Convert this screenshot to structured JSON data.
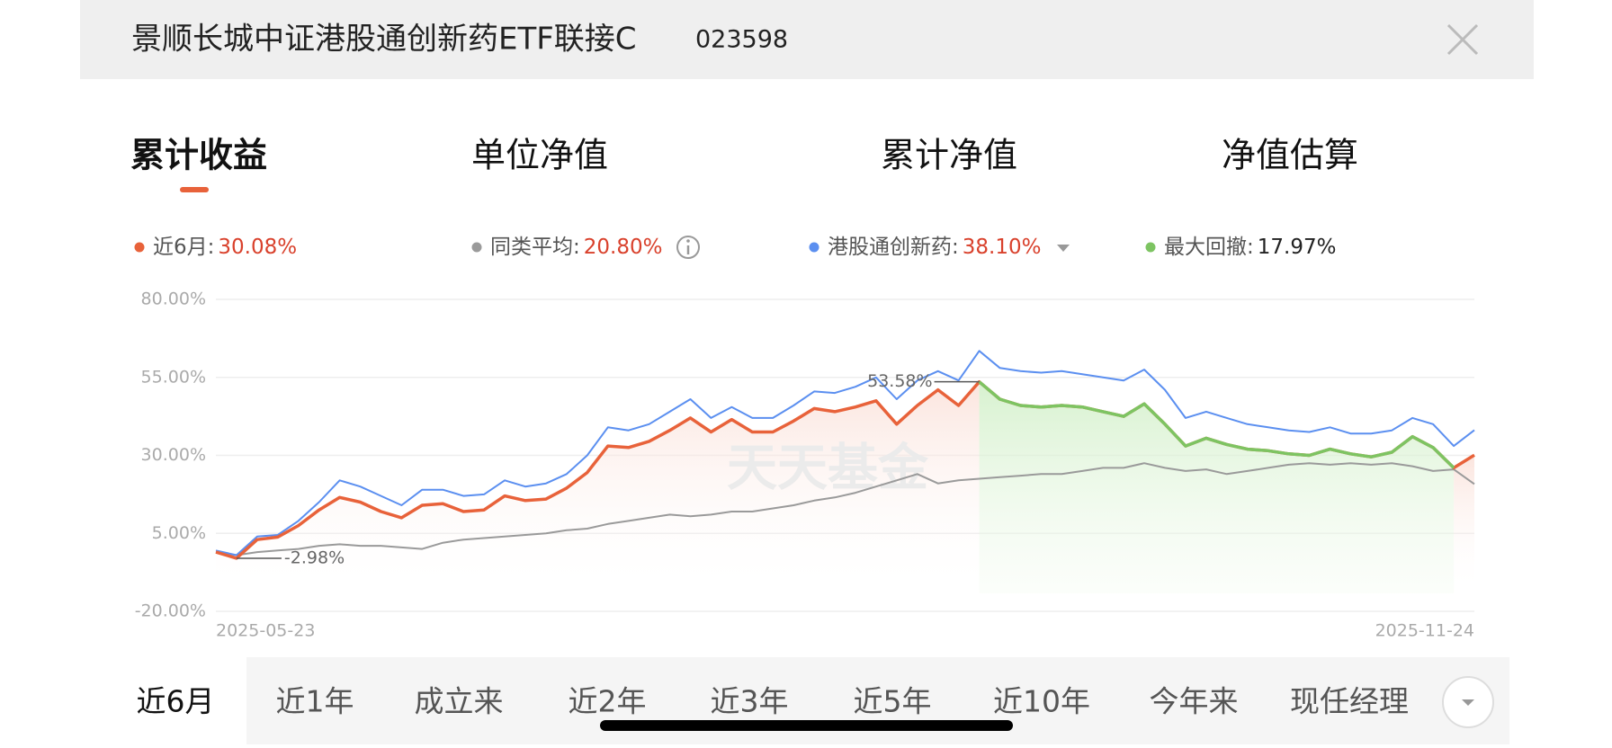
{
  "header": {
    "title": "景顺长城中证港股通创新药ETF联接C",
    "code": "023598"
  },
  "tabs": {
    "items": [
      "累计收益",
      "单位净值",
      "累计净值",
      "净值估算"
    ],
    "active": 0
  },
  "chart_data": {
    "type": "line",
    "watermark": "天天基金",
    "categories": [
      "2025-05-23",
      null,
      null,
      null,
      null,
      null,
      null,
      null,
      null,
      null,
      null,
      null,
      null,
      null,
      null,
      null,
      null,
      null,
      null,
      null,
      null,
      null,
      null,
      null,
      null,
      null,
      null,
      null,
      null,
      null,
      null,
      null,
      null,
      null,
      null,
      null,
      null,
      null,
      null,
      null,
      null,
      null,
      null,
      null,
      null,
      null,
      null,
      null,
      null,
      null,
      null,
      null,
      null,
      null,
      null,
      null,
      null,
      null,
      null,
      null,
      null,
      "2025-11-24"
    ],
    "series": [
      {
        "name": "近6月:",
        "value_label": "30.08%",
        "color": "#e8623a",
        "values": [
          -1,
          -2.98,
          3,
          3.8,
          7.5,
          12.5,
          16.5,
          15,
          12,
          10,
          14,
          14.5,
          12,
          12.5,
          17,
          15.5,
          16,
          19.5,
          24.5,
          33,
          32.5,
          34.5,
          38,
          42,
          37.5,
          41.5,
          37.5,
          37.5,
          41,
          45,
          44,
          45.5,
          47.5,
          40,
          46,
          51,
          46,
          53.58,
          48,
          46,
          45.5,
          46,
          45.5,
          44,
          42.5,
          46.5,
          40,
          33,
          35.5,
          33.5,
          32,
          31.5,
          30.5,
          30,
          32,
          30.5,
          29.5,
          31,
          36,
          32.5,
          25.98,
          30.08
        ]
      },
      {
        "name": "同类平均:",
        "value_label": "20.80%",
        "color": "#9a9a9a",
        "values": [
          -1,
          -2,
          -1,
          -0.5,
          0,
          1,
          1.5,
          1,
          1,
          0.5,
          0,
          2,
          3,
          3.5,
          4,
          4.5,
          5,
          6,
          6.5,
          8,
          9,
          10,
          11,
          10.5,
          11,
          12,
          12,
          13,
          14,
          15.5,
          16.5,
          18,
          20,
          22,
          24,
          21,
          22,
          22.5,
          23,
          23.5,
          24,
          24,
          25,
          26,
          26,
          27.5,
          26,
          25,
          25.5,
          24,
          25,
          26,
          27,
          27.5,
          27,
          27.5,
          27,
          27.5,
          26.5,
          25,
          25.5,
          20.8
        ]
      },
      {
        "name": "港股通创新药:",
        "value_label": "38.10%",
        "color": "#5b8ff0",
        "values": [
          -0.5,
          -2,
          4,
          4.5,
          9,
          15,
          22,
          20,
          17,
          14,
          19,
          19,
          17,
          17.5,
          22,
          20,
          21,
          24,
          30,
          39,
          38,
          40,
          44,
          48,
          42,
          45.5,
          42,
          42,
          46,
          50.5,
          50,
          52,
          55,
          48,
          54,
          57,
          54,
          63.5,
          58,
          57,
          56.5,
          57,
          56,
          55,
          54,
          57.5,
          51,
          42,
          44,
          42,
          40,
          39,
          38,
          37.5,
          39,
          37,
          37,
          38,
          42,
          40,
          33,
          38.1
        ]
      }
    ],
    "drawdown": {
      "name": "最大回撤:",
      "value": 17.97,
      "label": "17.97%",
      "color": "#7dc462"
    },
    "annotations": [
      {
        "text": "53.58%",
        "value": 53.58
      },
      {
        "text": "-2.98%",
        "value": -2.98
      }
    ],
    "ylim": [
      -20,
      80
    ],
    "yticks": [
      {
        "value": -20,
        "label": "-20.00%"
      },
      {
        "value": 5,
        "label": "5.00%"
      },
      {
        "value": 30,
        "label": "30.00%"
      },
      {
        "value": 55,
        "label": "55.00%"
      },
      {
        "value": 80,
        "label": "80.00%"
      }
    ],
    "grid": true
  },
  "periods": {
    "items": [
      "近6月",
      "近1年",
      "成立来",
      "近2年",
      "近3年",
      "近5年",
      "近10年",
      "今年来",
      "现任经理"
    ],
    "active": 0
  }
}
